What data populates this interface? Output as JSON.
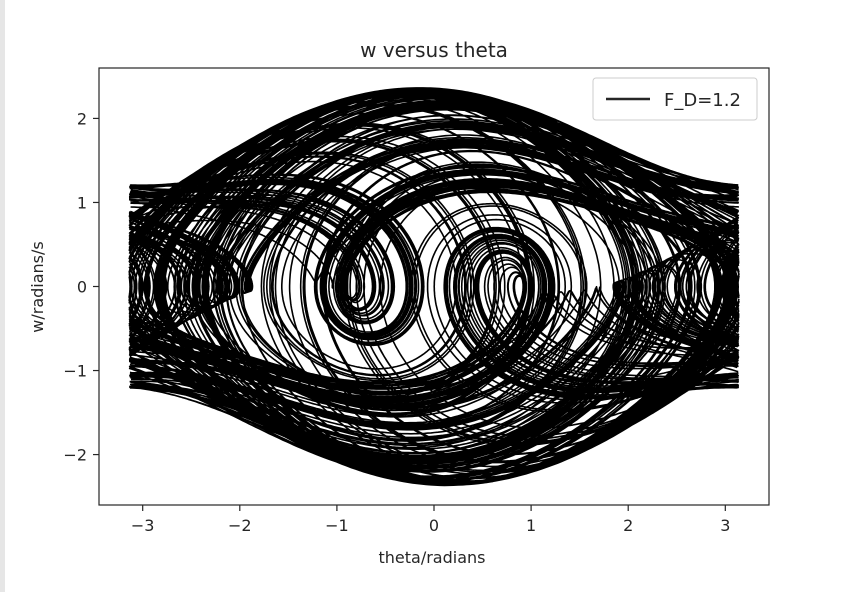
{
  "chart_data": {
    "type": "line",
    "title": "w versus theta",
    "xlabel": "theta/radians",
    "ylabel": "w/radians/s",
    "xlim": [
      -3.45,
      3.45
    ],
    "ylim": [
      -2.6,
      2.6
    ],
    "x_ticks": [
      -3,
      -2,
      -1,
      0,
      1,
      2,
      3
    ],
    "y_ticks": [
      -2,
      -1,
      0,
      1,
      2
    ],
    "x_tick_labels": [
      "−3",
      "−2",
      "−1",
      "0",
      "1",
      "2",
      "3"
    ],
    "y_tick_labels": [
      "−2",
      "−1",
      "0",
      "1",
      "2"
    ],
    "grid": false,
    "legend_position": "top-right",
    "series": [
      {
        "name": "F_D=1.2",
        "color": "#000000",
        "theta_range": [
          -3.14159,
          3.14159
        ],
        "w_range": [
          -2.38,
          2.38
        ]
      }
    ]
  }
}
